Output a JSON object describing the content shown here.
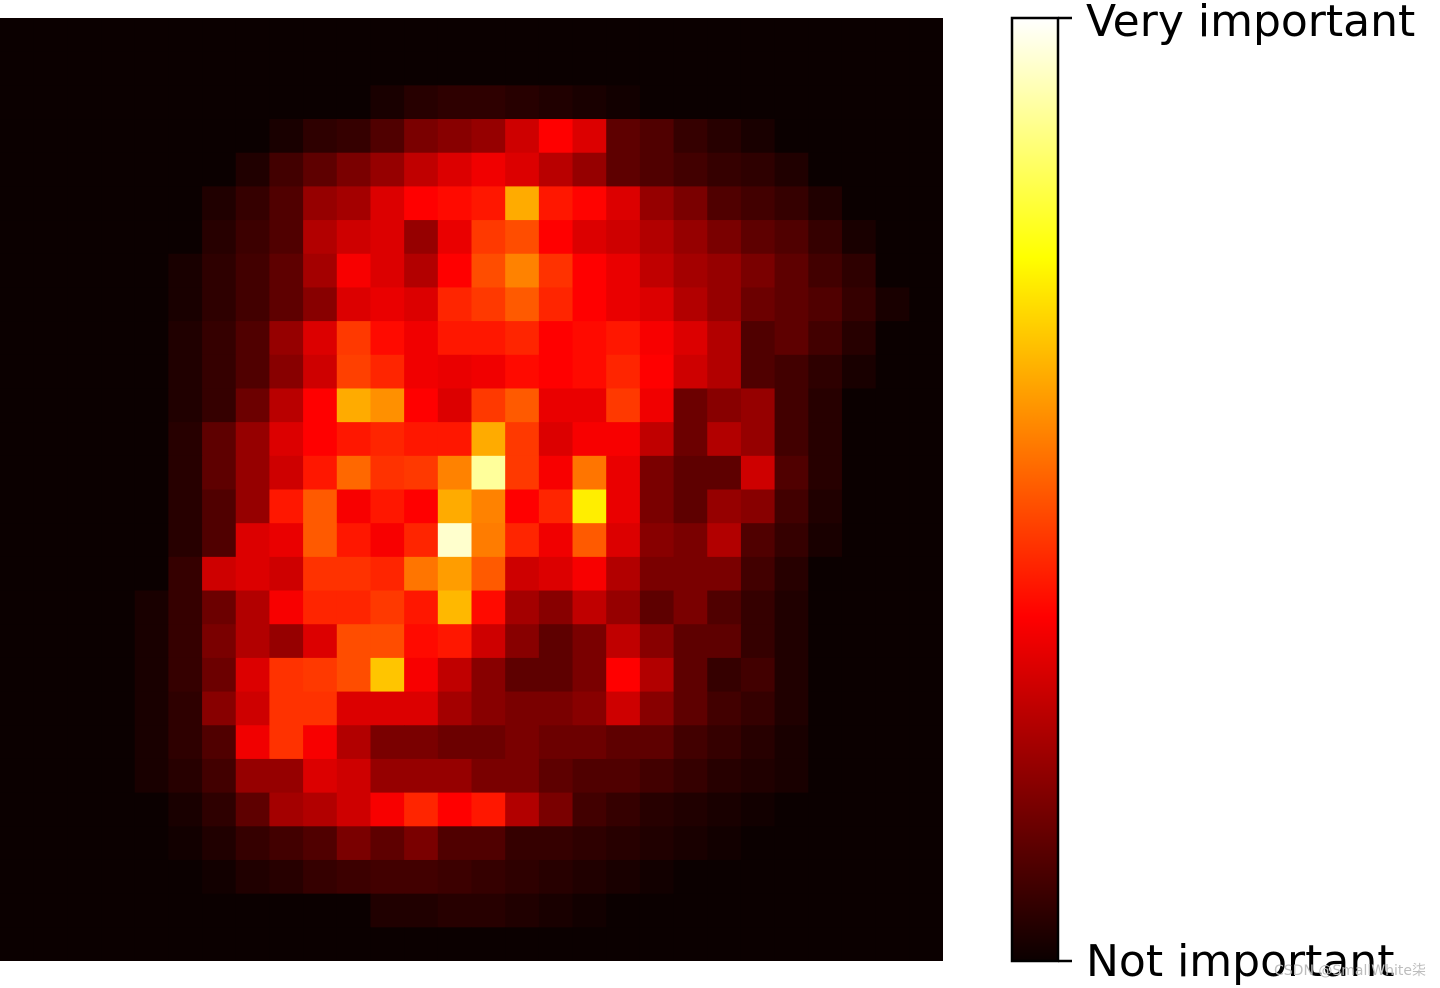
{
  "chart_data": {
    "type": "heatmap",
    "colormap": "hot",
    "grid_size": [
      28,
      28
    ],
    "colorbar": {
      "top_label": "Very important",
      "bottom_label": "Not important",
      "range": [
        0,
        1
      ]
    },
    "values": [
      [
        0,
        0,
        0,
        0,
        0,
        0,
        0,
        0,
        0,
        0,
        0,
        0,
        0,
        0,
        0,
        0,
        0,
        0,
        0,
        0,
        0,
        0,
        0,
        0,
        0,
        0,
        0,
        0
      ],
      [
        0,
        0,
        0,
        0,
        0,
        0,
        0,
        0,
        0,
        0,
        0,
        0,
        0,
        0,
        0,
        0,
        0,
        0,
        0,
        0,
        0,
        0,
        0,
        0,
        0,
        0,
        0,
        0
      ],
      [
        0,
        0,
        0,
        0,
        0,
        0,
        0,
        0,
        0,
        0,
        0,
        0.02,
        0.04,
        0.05,
        0.05,
        0.04,
        0.03,
        0.02,
        0.01,
        0,
        0,
        0,
        0,
        0,
        0,
        0,
        0,
        0
      ],
      [
        0,
        0,
        0,
        0,
        0,
        0,
        0,
        0,
        0.02,
        0.05,
        0.06,
        0.1,
        0.16,
        0.18,
        0.2,
        0.28,
        0.36,
        0.3,
        0.12,
        0.1,
        0.06,
        0.04,
        0.02,
        0,
        0,
        0,
        0,
        0
      ],
      [
        0,
        0,
        0,
        0,
        0,
        0,
        0,
        0.03,
        0.08,
        0.12,
        0.16,
        0.2,
        0.26,
        0.3,
        0.33,
        0.3,
        0.25,
        0.2,
        0.12,
        0.1,
        0.08,
        0.06,
        0.05,
        0.03,
        0,
        0,
        0,
        0
      ],
      [
        0,
        0,
        0,
        0,
        0,
        0,
        0.03,
        0.06,
        0.1,
        0.2,
        0.22,
        0.3,
        0.36,
        0.38,
        0.4,
        0.62,
        0.4,
        0.37,
        0.3,
        0.2,
        0.16,
        0.1,
        0.08,
        0.06,
        0.03,
        0,
        0,
        0
      ],
      [
        0,
        0,
        0,
        0,
        0,
        0,
        0.04,
        0.07,
        0.1,
        0.24,
        0.28,
        0.3,
        0.2,
        0.32,
        0.45,
        0.48,
        0.35,
        0.3,
        0.28,
        0.24,
        0.2,
        0.16,
        0.12,
        0.1,
        0.06,
        0.02,
        0,
        0
      ],
      [
        0,
        0,
        0,
        0,
        0,
        0.02,
        0.05,
        0.08,
        0.12,
        0.22,
        0.34,
        0.3,
        0.24,
        0.35,
        0.48,
        0.56,
        0.44,
        0.36,
        0.32,
        0.26,
        0.22,
        0.2,
        0.16,
        0.12,
        0.08,
        0.05,
        0,
        0
      ],
      [
        0,
        0,
        0,
        0,
        0,
        0.02,
        0.05,
        0.08,
        0.12,
        0.18,
        0.3,
        0.32,
        0.3,
        0.42,
        0.45,
        0.5,
        0.42,
        0.36,
        0.32,
        0.3,
        0.24,
        0.2,
        0.14,
        0.12,
        0.1,
        0.06,
        0.02,
        0
      ],
      [
        0,
        0,
        0,
        0,
        0,
        0.03,
        0.06,
        0.1,
        0.2,
        0.3,
        0.45,
        0.38,
        0.33,
        0.4,
        0.4,
        0.42,
        0.36,
        0.38,
        0.4,
        0.34,
        0.3,
        0.24,
        0.1,
        0.12,
        0.08,
        0.04,
        0,
        0
      ],
      [
        0,
        0,
        0,
        0,
        0,
        0.03,
        0.06,
        0.1,
        0.18,
        0.28,
        0.46,
        0.42,
        0.33,
        0.32,
        0.33,
        0.38,
        0.36,
        0.38,
        0.42,
        0.36,
        0.28,
        0.24,
        0.1,
        0.08,
        0.05,
        0.02,
        0,
        0
      ],
      [
        0,
        0,
        0,
        0,
        0,
        0.03,
        0.06,
        0.14,
        0.25,
        0.36,
        0.62,
        0.58,
        0.36,
        0.3,
        0.45,
        0.5,
        0.32,
        0.32,
        0.45,
        0.33,
        0.14,
        0.18,
        0.2,
        0.08,
        0.04,
        0,
        0,
        0
      ],
      [
        0,
        0,
        0,
        0,
        0,
        0.04,
        0.12,
        0.2,
        0.3,
        0.36,
        0.4,
        0.42,
        0.4,
        0.4,
        0.62,
        0.45,
        0.3,
        0.34,
        0.34,
        0.26,
        0.14,
        0.24,
        0.2,
        0.08,
        0.04,
        0,
        0,
        0
      ],
      [
        0,
        0,
        0,
        0,
        0,
        0.04,
        0.12,
        0.2,
        0.28,
        0.4,
        0.52,
        0.44,
        0.45,
        0.56,
        0.9,
        0.45,
        0.34,
        0.54,
        0.32,
        0.16,
        0.12,
        0.12,
        0.28,
        0.1,
        0.04,
        0,
        0,
        0
      ],
      [
        0,
        0,
        0,
        0,
        0,
        0.04,
        0.1,
        0.2,
        0.4,
        0.5,
        0.34,
        0.4,
        0.36,
        0.62,
        0.56,
        0.36,
        0.42,
        0.72,
        0.32,
        0.16,
        0.12,
        0.2,
        0.18,
        0.08,
        0.03,
        0,
        0,
        0
      ],
      [
        0,
        0,
        0,
        0,
        0,
        0.04,
        0.1,
        0.3,
        0.32,
        0.5,
        0.4,
        0.34,
        0.42,
        0.95,
        0.55,
        0.42,
        0.33,
        0.5,
        0.3,
        0.18,
        0.16,
        0.24,
        0.1,
        0.06,
        0.02,
        0,
        0,
        0
      ],
      [
        0,
        0,
        0,
        0,
        0,
        0.06,
        0.28,
        0.3,
        0.28,
        0.44,
        0.44,
        0.42,
        0.54,
        0.6,
        0.5,
        0.28,
        0.3,
        0.34,
        0.24,
        0.16,
        0.16,
        0.16,
        0.08,
        0.04,
        0,
        0,
        0,
        0
      ],
      [
        0,
        0,
        0,
        0,
        0.02,
        0.06,
        0.14,
        0.24,
        0.34,
        0.42,
        0.42,
        0.45,
        0.4,
        0.64,
        0.38,
        0.22,
        0.18,
        0.26,
        0.2,
        0.12,
        0.16,
        0.1,
        0.06,
        0.03,
        0,
        0,
        0,
        0
      ],
      [
        0,
        0,
        0,
        0,
        0.02,
        0.06,
        0.16,
        0.24,
        0.2,
        0.3,
        0.48,
        0.48,
        0.38,
        0.4,
        0.28,
        0.18,
        0.12,
        0.16,
        0.26,
        0.18,
        0.12,
        0.12,
        0.06,
        0.03,
        0,
        0,
        0,
        0
      ],
      [
        0,
        0,
        0,
        0,
        0.02,
        0.06,
        0.14,
        0.3,
        0.44,
        0.45,
        0.48,
        0.66,
        0.34,
        0.26,
        0.18,
        0.12,
        0.12,
        0.16,
        0.36,
        0.24,
        0.12,
        0.06,
        0.08,
        0.03,
        0,
        0,
        0,
        0
      ],
      [
        0,
        0,
        0,
        0,
        0.02,
        0.05,
        0.18,
        0.28,
        0.44,
        0.44,
        0.3,
        0.3,
        0.3,
        0.22,
        0.18,
        0.16,
        0.16,
        0.18,
        0.28,
        0.18,
        0.12,
        0.08,
        0.06,
        0.03,
        0,
        0,
        0,
        0
      ],
      [
        0,
        0,
        0,
        0,
        0.02,
        0.05,
        0.1,
        0.33,
        0.44,
        0.34,
        0.24,
        0.16,
        0.16,
        0.14,
        0.14,
        0.16,
        0.14,
        0.14,
        0.12,
        0.12,
        0.08,
        0.06,
        0.04,
        0.02,
        0,
        0,
        0,
        0
      ],
      [
        0,
        0,
        0,
        0,
        0.02,
        0.04,
        0.08,
        0.2,
        0.2,
        0.3,
        0.28,
        0.2,
        0.2,
        0.2,
        0.16,
        0.16,
        0.12,
        0.1,
        0.1,
        0.08,
        0.06,
        0.04,
        0.03,
        0.02,
        0,
        0,
        0,
        0
      ],
      [
        0,
        0,
        0,
        0,
        0,
        0.02,
        0.05,
        0.12,
        0.22,
        0.24,
        0.28,
        0.34,
        0.42,
        0.36,
        0.4,
        0.24,
        0.16,
        0.08,
        0.06,
        0.04,
        0.03,
        0.02,
        0.01,
        0,
        0,
        0,
        0,
        0
      ],
      [
        0,
        0,
        0,
        0,
        0,
        0.01,
        0.03,
        0.06,
        0.08,
        0.1,
        0.16,
        0.12,
        0.16,
        0.1,
        0.1,
        0.06,
        0.06,
        0.05,
        0.04,
        0.03,
        0.02,
        0.01,
        0,
        0,
        0,
        0,
        0,
        0
      ],
      [
        0,
        0,
        0,
        0,
        0,
        0,
        0.01,
        0.03,
        0.04,
        0.06,
        0.07,
        0.08,
        0.08,
        0.07,
        0.06,
        0.05,
        0.04,
        0.03,
        0.02,
        0.01,
        0,
        0,
        0,
        0,
        0,
        0,
        0,
        0
      ],
      [
        0,
        0,
        0,
        0,
        0,
        0,
        0,
        0,
        0,
        0,
        0,
        0.03,
        0.03,
        0.04,
        0.04,
        0.03,
        0.02,
        0.01,
        0,
        0,
        0,
        0,
        0,
        0,
        0,
        0,
        0,
        0
      ],
      [
        0,
        0,
        0,
        0,
        0,
        0,
        0,
        0,
        0,
        0,
        0,
        0,
        0,
        0,
        0,
        0,
        0,
        0,
        0,
        0,
        0,
        0,
        0,
        0,
        0,
        0,
        0,
        0
      ]
    ]
  },
  "watermark": "CSDN @SmallWhite柒"
}
